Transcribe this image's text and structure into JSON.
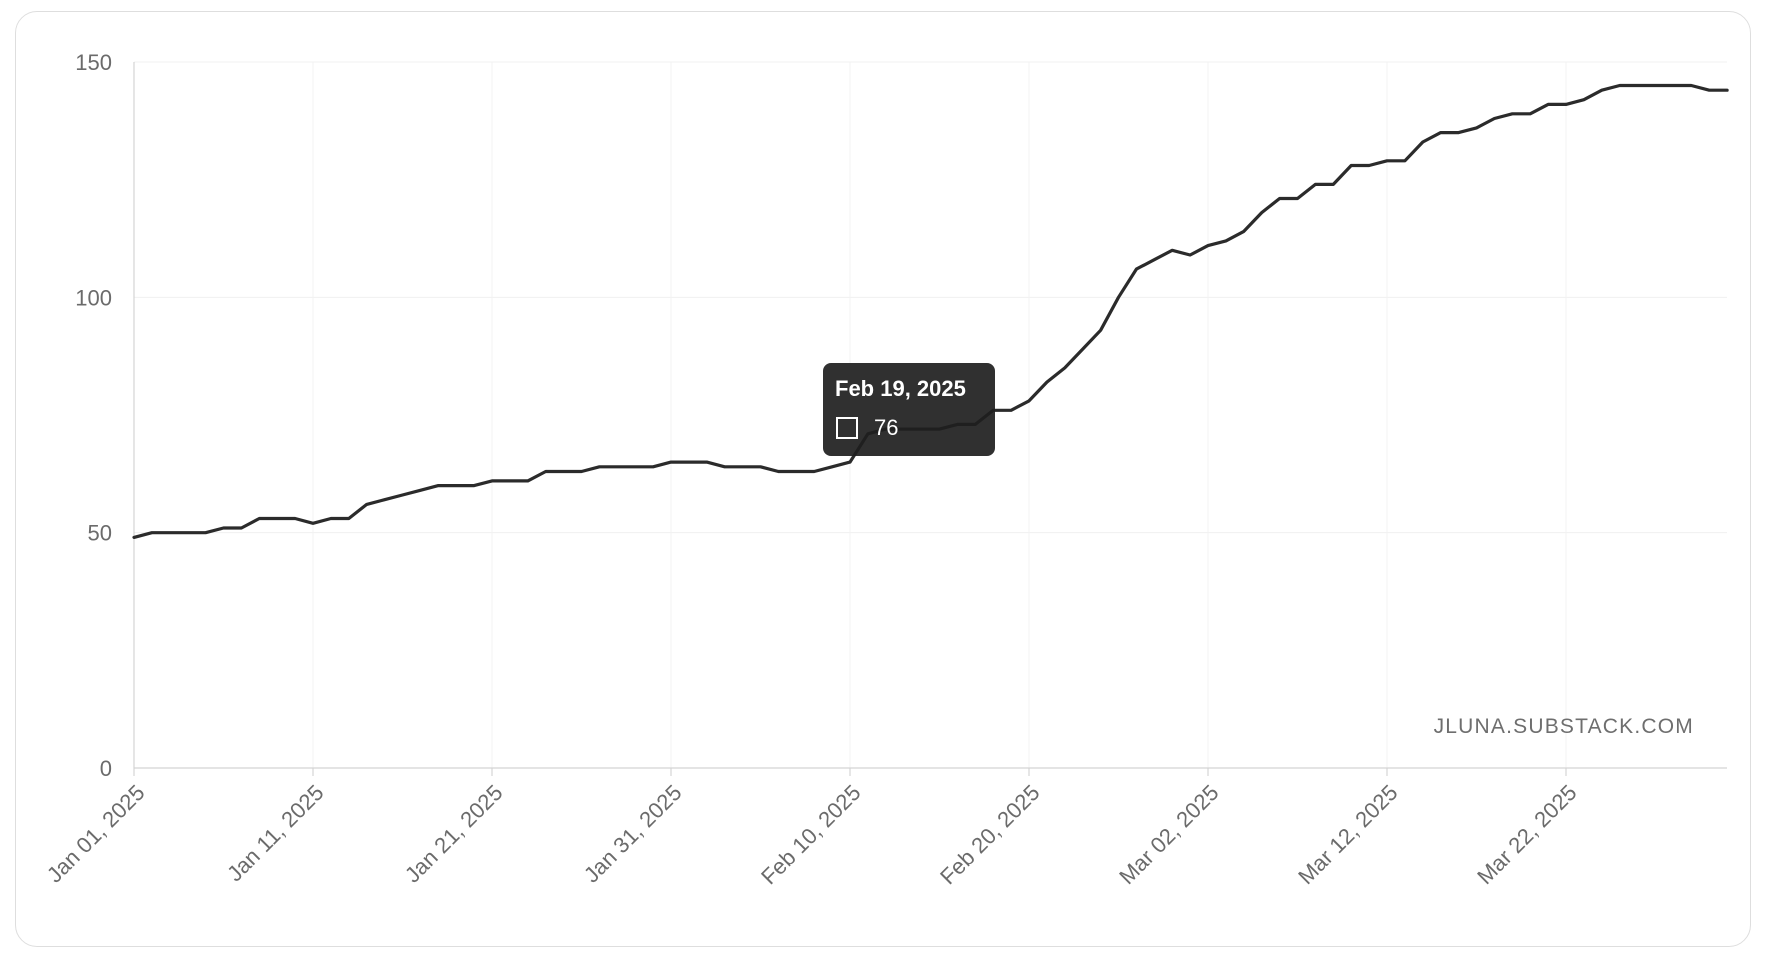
{
  "chart_data": {
    "type": "line",
    "title": "",
    "xlabel": "",
    "ylabel": "",
    "ylim": [
      0,
      150
    ],
    "yticks": [
      0,
      50,
      100,
      150
    ],
    "x_start": "2025-01-01",
    "x_tick_labels": [
      "Jan 01, 2025",
      "Jan 11, 2025",
      "Jan 21, 2025",
      "Jan 31, 2025",
      "Feb 10, 2025",
      "Feb 20, 2025",
      "Mar 02, 2025",
      "Mar 12, 2025",
      "Mar 22, 2025"
    ],
    "grid": true,
    "legend": "none",
    "line_color": "#2b2b2b",
    "x": [
      "2025-01-01",
      "2025-01-02",
      "2025-01-03",
      "2025-01-04",
      "2025-01-05",
      "2025-01-06",
      "2025-01-07",
      "2025-01-08",
      "2025-01-09",
      "2025-01-10",
      "2025-01-11",
      "2025-01-12",
      "2025-01-13",
      "2025-01-14",
      "2025-01-15",
      "2025-01-16",
      "2025-01-17",
      "2025-01-18",
      "2025-01-19",
      "2025-01-20",
      "2025-01-21",
      "2025-01-22",
      "2025-01-23",
      "2025-01-24",
      "2025-01-25",
      "2025-01-26",
      "2025-01-27",
      "2025-01-28",
      "2025-01-29",
      "2025-01-30",
      "2025-01-31",
      "2025-02-01",
      "2025-02-02",
      "2025-02-03",
      "2025-02-04",
      "2025-02-05",
      "2025-02-06",
      "2025-02-07",
      "2025-02-08",
      "2025-02-09",
      "2025-02-10",
      "2025-02-11",
      "2025-02-12",
      "2025-02-13",
      "2025-02-14",
      "2025-02-15",
      "2025-02-16",
      "2025-02-17",
      "2025-02-18",
      "2025-02-19",
      "2025-02-20",
      "2025-02-21",
      "2025-02-22",
      "2025-02-23",
      "2025-02-24",
      "2025-02-25",
      "2025-02-26",
      "2025-02-27",
      "2025-02-28",
      "2025-03-01",
      "2025-03-02",
      "2025-03-03",
      "2025-03-04",
      "2025-03-05",
      "2025-03-06",
      "2025-03-07",
      "2025-03-08",
      "2025-03-09",
      "2025-03-10",
      "2025-03-11",
      "2025-03-12",
      "2025-03-13",
      "2025-03-14",
      "2025-03-15",
      "2025-03-16",
      "2025-03-17",
      "2025-03-18",
      "2025-03-19",
      "2025-03-20",
      "2025-03-21",
      "2025-03-22",
      "2025-03-23",
      "2025-03-24",
      "2025-03-25",
      "2025-03-26",
      "2025-03-27",
      "2025-03-28",
      "2025-03-29",
      "2025-03-30",
      "2025-03-31"
    ],
    "values": [
      49,
      50,
      50,
      50,
      50,
      51,
      51,
      53,
      53,
      53,
      52,
      53,
      53,
      56,
      57,
      58,
      59,
      60,
      60,
      60,
      61,
      61,
      61,
      63,
      63,
      63,
      64,
      64,
      64,
      64,
      65,
      65,
      65,
      64,
      64,
      64,
      63,
      63,
      63,
      64,
      65,
      71,
      72,
      72,
      72,
      72,
      73,
      73,
      76,
      76,
      78,
      82,
      85,
      89,
      93,
      100,
      106,
      108,
      110,
      109,
      111,
      112,
      114,
      118,
      121,
      121,
      124,
      124,
      128,
      128,
      129,
      129,
      133,
      135,
      135,
      136,
      138,
      139,
      139,
      141,
      141,
      142,
      144,
      145,
      145,
      145,
      145,
      145,
      144,
      144
    ],
    "tooltip": {
      "date": "Feb 19, 2025",
      "value": "76"
    },
    "watermark": "JLUNA.SUBSTACK.COM"
  }
}
